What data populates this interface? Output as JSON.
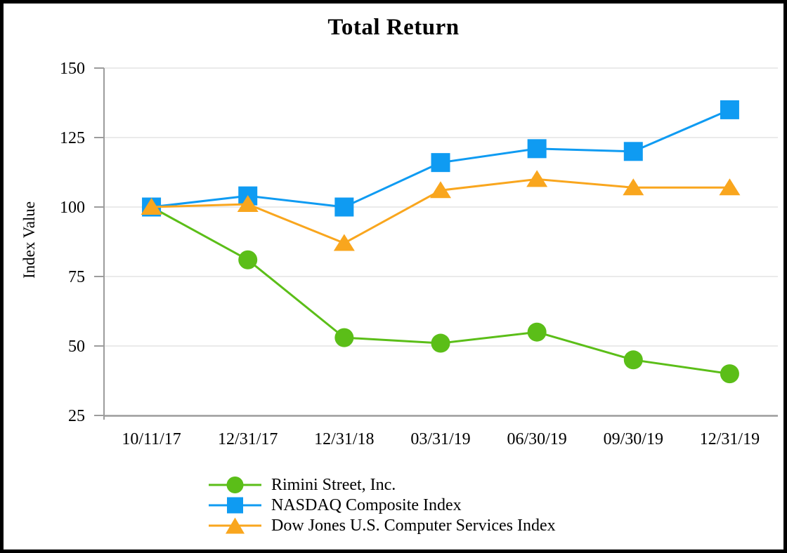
{
  "title": "Total Return",
  "colors": {
    "background": "#FFFFFF",
    "border": "#000000",
    "gridline": "#E3E3E3",
    "axis": "#9C9C9C",
    "text": "#000000"
  },
  "chart_data": {
    "type": "line",
    "title": "Total Return",
    "xlabel": "",
    "ylabel": "Index Value",
    "categories": [
      "10/11/17",
      "12/31/17",
      "12/31/18",
      "03/31/19",
      "06/30/19",
      "09/30/19",
      "12/31/19"
    ],
    "series": [
      {
        "name": "Rimini Street, Inc.",
        "marker": "circle",
        "color": "#5BBE18",
        "values": [
          100,
          81,
          53,
          51,
          55,
          45,
          40
        ]
      },
      {
        "name": "NASDAQ Composite Index",
        "marker": "square",
        "color": "#0F9BF2",
        "values": [
          100,
          104,
          100,
          116,
          121,
          120,
          135
        ]
      },
      {
        "name": "Dow Jones U.S. Computer Services Index",
        "marker": "triangle",
        "color": "#F9A61E",
        "values": [
          100,
          101,
          87,
          106,
          110,
          107,
          107
        ]
      }
    ],
    "y_ticks": [
      25,
      50,
      75,
      100,
      125,
      150
    ],
    "ylim": [
      25,
      150
    ],
    "grid": true,
    "legend_position": "bottom-center"
  }
}
